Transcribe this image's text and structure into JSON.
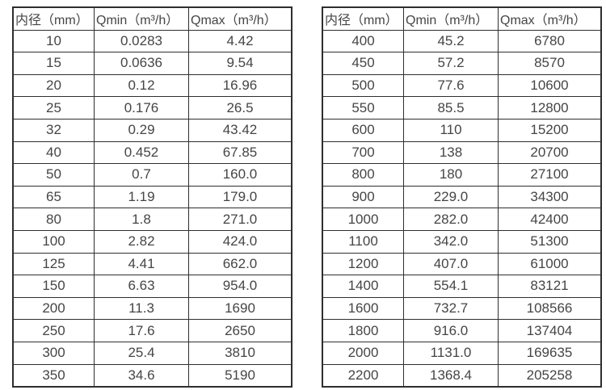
{
  "colors": {
    "background": "#ffffff",
    "border": "#2e2e2e",
    "text": "#454545"
  },
  "tables": [
    {
      "name": "diameter-flow-table-small",
      "headers": [
        "内径（mm）",
        "Qmin（m³/h）",
        "Qmax（m³/h）"
      ],
      "rows": [
        [
          "10",
          "0.0283",
          "4.42"
        ],
        [
          "15",
          "0.0636",
          "9.54"
        ],
        [
          "20",
          "0.12",
          "16.96"
        ],
        [
          "25",
          "0.176",
          "26.5"
        ],
        [
          "32",
          "0.29",
          "43.42"
        ],
        [
          "40",
          "0.452",
          "67.85"
        ],
        [
          "50",
          "0.7",
          "160.0"
        ],
        [
          "65",
          "1.19",
          "179.0"
        ],
        [
          "80",
          "1.8",
          "271.0"
        ],
        [
          "100",
          "2.82",
          "424.0"
        ],
        [
          "125",
          "4.41",
          "662.0"
        ],
        [
          "150",
          "6.63",
          "954.0"
        ],
        [
          "200",
          "11.3",
          "1690"
        ],
        [
          "250",
          "17.6",
          "2650"
        ],
        [
          "300",
          "25.4",
          "3810"
        ],
        [
          "350",
          "34.6",
          "5190"
        ]
      ]
    },
    {
      "name": "diameter-flow-table-large",
      "headers": [
        "内径（mm）",
        "Qmin（m³/h）",
        "Qmax（m³/h）"
      ],
      "rows": [
        [
          "400",
          "45.2",
          "6780"
        ],
        [
          "450",
          "57.2",
          "8570"
        ],
        [
          "500",
          "77.6",
          "10600"
        ],
        [
          "550",
          "85.5",
          "12800"
        ],
        [
          "600",
          "110",
          "15200"
        ],
        [
          "700",
          "138",
          "20700"
        ],
        [
          "800",
          "180",
          "27100"
        ],
        [
          "900",
          "229.0",
          "34300"
        ],
        [
          "1000",
          "282.0",
          "42400"
        ],
        [
          "1100",
          "342.0",
          "51300"
        ],
        [
          "1200",
          "407.0",
          "61000"
        ],
        [
          "1400",
          "554.1",
          "83121"
        ],
        [
          "1600",
          "732.7",
          "108566"
        ],
        [
          "1800",
          "916.0",
          "137404"
        ],
        [
          "2000",
          "1131.0",
          "169635"
        ],
        [
          "2200",
          "1368.4",
          "205258"
        ]
      ]
    }
  ]
}
